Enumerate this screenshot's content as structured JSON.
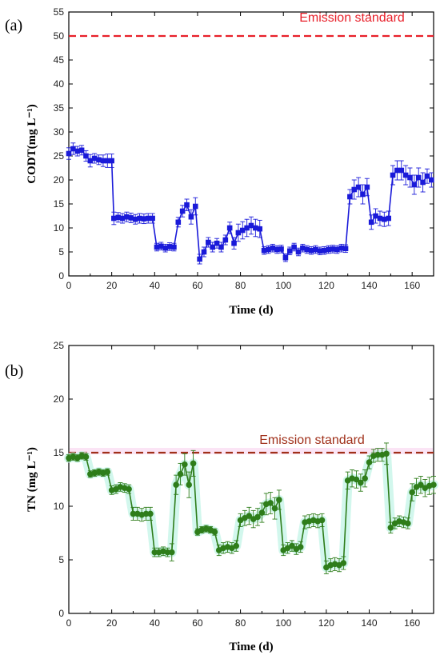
{
  "chart_data": [
    {
      "type": "line",
      "panel_label": "(a)",
      "xlabel": "Time (d)",
      "ylabel": "CODT(mg L⁻¹)",
      "xlim": [
        0,
        170
      ],
      "ylim": [
        0,
        55
      ],
      "xticks": [
        "0",
        "20",
        "40",
        "60",
        "80",
        "100",
        "120",
        "140",
        "160"
      ],
      "yticks": [
        "0",
        "5",
        "10",
        "15",
        "20",
        "25",
        "30",
        "35",
        "40",
        "45",
        "50",
        "55"
      ],
      "grid": false,
      "marker": "square",
      "color": "#1a1ad9",
      "reference_line": {
        "value": 50,
        "label": "Emission standard",
        "color": "#e8202a",
        "style": "dashed"
      },
      "series": [
        {
          "x": [
            0,
            2,
            4,
            6,
            8,
            10,
            12,
            14,
            16,
            18,
            20,
            21,
            23,
            25,
            27,
            29,
            31,
            33,
            35,
            37,
            39,
            41,
            43,
            45,
            47,
            49,
            51,
            53,
            55,
            57,
            59,
            61,
            63,
            65,
            67,
            69,
            71,
            73,
            75,
            77,
            79,
            81,
            83,
            85,
            87,
            89,
            91,
            93,
            95,
            97,
            99,
            101,
            103,
            105,
            107,
            109,
            111,
            113,
            115,
            117,
            119,
            121,
            123,
            125,
            127,
            129,
            131,
            133,
            135,
            137,
            139,
            141,
            143,
            145,
            147,
            149,
            151,
            153,
            155,
            157,
            159,
            161,
            163,
            165,
            167,
            169
          ],
          "y": [
            25.5,
            26.5,
            26.0,
            26.2,
            25.0,
            24.0,
            24.5,
            24.2,
            24.0,
            24.0,
            24.0,
            12.0,
            12.2,
            12.0,
            12.3,
            12.1,
            11.8,
            12.0,
            11.9,
            12.0,
            12.0,
            6.0,
            6.2,
            5.8,
            6.1,
            6.0,
            11.2,
            13.5,
            14.8,
            12.3,
            14.5,
            3.5,
            5.0,
            7.0,
            6.0,
            6.8,
            6.0,
            7.5,
            10.0,
            6.8,
            9.0,
            9.5,
            10.0,
            10.5,
            10.0,
            9.8,
            5.3,
            5.5,
            5.8,
            5.5,
            5.6,
            3.8,
            5.2,
            6.0,
            5.0,
            5.8,
            5.5,
            5.3,
            5.5,
            5.2,
            5.3,
            5.5,
            5.6,
            5.5,
            5.8,
            5.7,
            16.5,
            18.0,
            18.5,
            17.0,
            18.5,
            11.2,
            12.5,
            12.0,
            11.8,
            12.0,
            21.0,
            22.0,
            22.0,
            21.0,
            20.5,
            19.0,
            20.5,
            19.5,
            20.8,
            20.0
          ],
          "err": [
            1.2,
            1.2,
            1.0,
            1.0,
            1.1,
            1.3,
            1.0,
            1.0,
            1.2,
            1.4,
            1.4,
            1.3,
            1.0,
            1.0,
            1.0,
            1.0,
            1.0,
            1.0,
            1.0,
            1.0,
            1.0,
            0.8,
            0.8,
            0.8,
            0.8,
            0.8,
            1.0,
            1.2,
            1.2,
            1.5,
            1.8,
            1.0,
            1.0,
            1.0,
            1.0,
            1.0,
            1.0,
            1.0,
            1.2,
            1.2,
            1.8,
            1.8,
            1.8,
            1.8,
            1.8,
            1.8,
            0.8,
            0.8,
            0.8,
            0.8,
            0.8,
            0.8,
            0.8,
            0.8,
            0.8,
            0.8,
            0.8,
            0.8,
            0.8,
            0.8,
            0.8,
            0.8,
            0.8,
            0.8,
            0.8,
            0.8,
            1.5,
            2.0,
            2.0,
            2.0,
            1.8,
            1.5,
            1.5,
            1.5,
            1.5,
            1.5,
            2.0,
            2.0,
            2.0,
            2.0,
            2.0,
            2.0,
            2.0,
            2.0,
            1.5,
            1.5
          ]
        }
      ]
    },
    {
      "type": "line",
      "panel_label": "(b)",
      "xlabel": "Time (d)",
      "ylabel": "TN (mg L⁻¹)",
      "xlim": [
        0,
        170
      ],
      "ylim": [
        0,
        25
      ],
      "xticks": [
        "0",
        "20",
        "40",
        "60",
        "80",
        "100",
        "120",
        "140",
        "160"
      ],
      "yticks": [
        "0",
        "5",
        "10",
        "15",
        "20",
        "25"
      ],
      "grid": false,
      "marker": "circle",
      "color": "#2e7d1a",
      "halo_color": "#bff3e6",
      "reference_line": {
        "value": 15,
        "label": "Emission standard",
        "color": "#a0301a",
        "style": "dashed"
      },
      "series": [
        {
          "x": [
            0,
            2,
            4,
            6,
            8,
            10,
            12,
            14,
            16,
            18,
            20,
            22,
            24,
            26,
            28,
            30,
            32,
            34,
            36,
            38,
            40,
            42,
            44,
            46,
            48,
            50,
            52,
            54,
            56,
            58,
            60,
            62,
            64,
            66,
            68,
            70,
            72,
            74,
            76,
            78,
            80,
            82,
            84,
            86,
            88,
            90,
            92,
            94,
            96,
            98,
            100,
            102,
            104,
            106,
            108,
            110,
            112,
            114,
            116,
            118,
            120,
            122,
            124,
            126,
            128,
            130,
            132,
            134,
            136,
            138,
            140,
            142,
            144,
            146,
            148,
            150,
            152,
            154,
            156,
            158,
            160,
            162,
            164,
            166,
            168,
            170
          ],
          "y": [
            14.5,
            14.6,
            14.5,
            14.7,
            14.6,
            13.0,
            13.1,
            13.2,
            13.1,
            13.2,
            11.5,
            11.6,
            11.8,
            11.7,
            11.6,
            9.3,
            9.3,
            9.2,
            9.3,
            9.3,
            5.7,
            5.7,
            5.8,
            5.7,
            5.7,
            12.0,
            13.0,
            13.9,
            12.0,
            14.0,
            7.6,
            7.8,
            7.9,
            7.8,
            7.6,
            5.9,
            6.1,
            6.2,
            6.1,
            6.3,
            8.7,
            8.9,
            9.1,
            8.8,
            9.0,
            9.4,
            10.2,
            10.3,
            9.8,
            10.6,
            5.9,
            6.1,
            6.3,
            6.0,
            6.2,
            8.5,
            8.6,
            8.7,
            8.6,
            8.7,
            4.3,
            4.5,
            4.6,
            4.5,
            4.7,
            12.4,
            12.6,
            12.5,
            12.2,
            12.6,
            14.1,
            14.7,
            14.8,
            14.8,
            14.9,
            8.0,
            8.4,
            8.6,
            8.5,
            8.4,
            11.3,
            11.8,
            12.0,
            11.7,
            11.9,
            12.0
          ],
          "err": [
            0.3,
            0.3,
            0.3,
            0.3,
            0.3,
            0.3,
            0.3,
            0.3,
            0.3,
            0.3,
            0.4,
            0.4,
            0.4,
            0.4,
            0.4,
            0.6,
            0.6,
            0.6,
            0.6,
            0.6,
            0.4,
            0.4,
            0.4,
            0.4,
            0.8,
            0.9,
            1.0,
            1.0,
            1.2,
            1.2,
            0.3,
            0.3,
            0.3,
            0.3,
            0.3,
            0.5,
            0.5,
            0.5,
            0.5,
            0.5,
            0.6,
            0.7,
            0.8,
            0.8,
            0.8,
            0.9,
            1.0,
            1.0,
            1.0,
            0.9,
            0.5,
            0.5,
            0.5,
            0.5,
            0.5,
            0.6,
            0.6,
            0.6,
            0.6,
            0.6,
            0.6,
            0.6,
            0.6,
            0.6,
            0.6,
            0.8,
            0.8,
            0.8,
            0.8,
            0.8,
            0.6,
            0.6,
            0.6,
            0.6,
            1.0,
            0.5,
            0.5,
            0.5,
            0.5,
            0.5,
            0.8,
            0.8,
            0.8,
            0.8,
            0.8,
            0.8
          ]
        }
      ]
    }
  ]
}
